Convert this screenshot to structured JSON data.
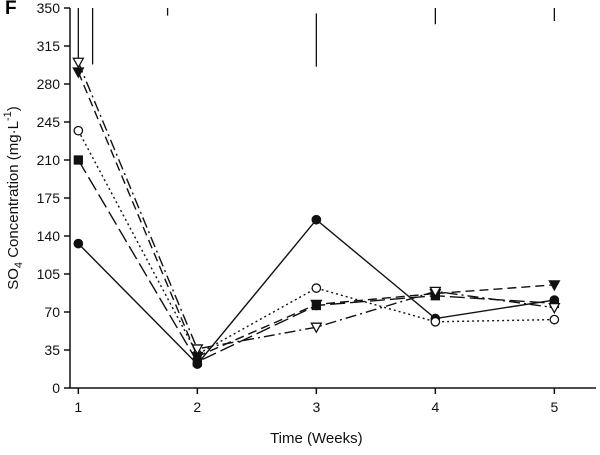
{
  "panel_label": "F",
  "chart_data": {
    "type": "line",
    "title": "",
    "xlabel": "Time (Weeks)",
    "ylabel_parts": [
      {
        "text": "SO",
        "style": "normal"
      },
      {
        "text": "4",
        "style": "sub"
      },
      {
        "text": " Concentration (mg·L",
        "style": "normal"
      },
      {
        "text": "-1",
        "style": "sup"
      },
      {
        "text": ")",
        "style": "normal"
      }
    ],
    "x": [
      1,
      2,
      3,
      4,
      5
    ],
    "xticks": [
      1,
      2,
      3,
      4,
      5
    ],
    "yticks": [
      0,
      35,
      70,
      105,
      140,
      175,
      210,
      245,
      280,
      315,
      350
    ],
    "xlim": [
      0.93,
      5.35
    ],
    "ylim": [
      0,
      350
    ],
    "grid": false,
    "legend": "none",
    "line_color": "#111111",
    "series": [
      {
        "name": "filled-circle",
        "marker": "circle-filled",
        "line_style": "solid",
        "values": [
          133,
          22,
          155,
          64,
          81
        ]
      },
      {
        "name": "open-circle",
        "marker": "circle-open",
        "line_style": "dotted",
        "values": [
          237,
          31,
          92,
          61,
          63
        ]
      },
      {
        "name": "filled-square",
        "marker": "square-filled",
        "line_style": "long-dash",
        "values": [
          210,
          24,
          76,
          85,
          78
        ]
      },
      {
        "name": "filled-triangle-down",
        "marker": "triangle-down-filled",
        "line_style": "dash",
        "values": [
          291,
          29,
          77,
          87,
          95
        ]
      },
      {
        "name": "open-triangle-down",
        "marker": "triangle-down-open",
        "line_style": "dash-dot",
        "values": [
          300,
          36,
          56,
          89,
          74
        ]
      }
    ],
    "error_bars": [
      {
        "x": 1.0,
        "y1": 300,
        "y2": 350
      },
      {
        "x": 1.12,
        "y1": 298,
        "y2": 350
      },
      {
        "x": 1.75,
        "y1": 343,
        "y2": 350
      },
      {
        "x": 3.0,
        "y1": 296,
        "y2": 345
      },
      {
        "x": 4.0,
        "y1": 335,
        "y2": 350
      },
      {
        "x": 5.0,
        "y1": 338,
        "y2": 350
      }
    ]
  }
}
